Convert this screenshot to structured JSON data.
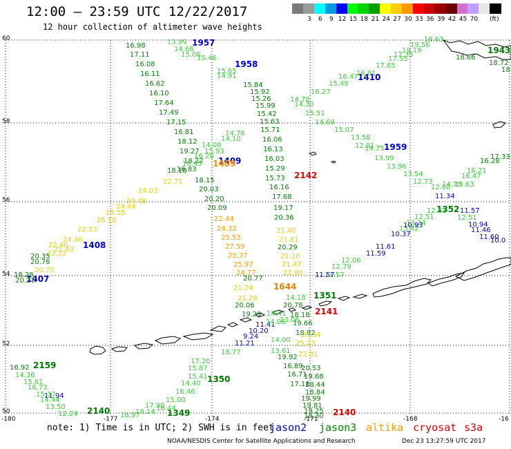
{
  "header": {
    "title": "12:00 – 23:59 UTC 12/22/2017",
    "subtitle": "12 hour collection of altimeter wave heights"
  },
  "legend": {
    "colors": [
      "#7a7a7a",
      "#9a9a9a",
      "#00ffff",
      "#009ae0",
      "#0000ff",
      "#00ff00",
      "#00d400",
      "#00a000",
      "#ffff00",
      "#ffcc00",
      "#ff9900",
      "#ff0000",
      "#c80000",
      "#960000",
      "#6e0000",
      "#d070d0",
      "#c0a0ff",
      "#e6e6e6",
      "#000000"
    ],
    "labels": [
      "3",
      "6",
      "9",
      "12",
      "15",
      "18",
      "21",
      "24",
      "27",
      "30",
      "33",
      "36",
      "39",
      "42",
      "45",
      "70"
    ],
    "unit": "(ft)"
  },
  "axes": {
    "lat_labels": [
      "60",
      "58",
      "56",
      "54",
      "52",
      "50"
    ],
    "lon_labels": [
      "-180",
      "-177",
      "-174",
      "-171",
      "-168",
      "-16"
    ]
  },
  "passes": [
    {
      "label": "1957",
      "color": "#0000c8"
    },
    {
      "label": "1958",
      "color": "#0000c8"
    },
    {
      "label": "1410",
      "color": "#0000c8"
    },
    {
      "label": "1959",
      "color": "#0000c8"
    },
    {
      "label": "1943",
      "color": "#007800"
    },
    {
      "label": "1409",
      "color": "#0000c8"
    },
    {
      "label": "1409",
      "color": "#ff8c00"
    },
    {
      "label": "2142",
      "color": "#e00000"
    },
    {
      "label": "1408",
      "color": "#0000c8"
    },
    {
      "label": "1407",
      "color": "#0000c8"
    },
    {
      "label": "1352",
      "color": "#007800"
    },
    {
      "label": "1644",
      "color": "#e08000"
    },
    {
      "label": "1351",
      "color": "#007800"
    },
    {
      "label": "2141",
      "color": "#e00000"
    },
    {
      "label": "2159",
      "color": "#007800"
    },
    {
      "label": "1350",
      "color": "#007800"
    },
    {
      "label": "2140",
      "color": "#007800"
    },
    {
      "label": "1349",
      "color": "#007800"
    },
    {
      "label": "2140",
      "color": "#e00000"
    }
  ],
  "track_labels": [
    {
      "v": "16.98",
      "c": "#008000"
    },
    {
      "v": "17.11",
      "c": "#008000"
    },
    {
      "v": "16.08",
      "c": "#008000"
    },
    {
      "v": "16.11",
      "c": "#008000"
    },
    {
      "v": "16.62",
      "c": "#008000"
    },
    {
      "v": "16.10",
      "c": "#008000"
    },
    {
      "v": "17.64",
      "c": "#008000"
    },
    {
      "v": "17.49",
      "c": "#008000"
    },
    {
      "v": "17.15",
      "c": "#008000"
    },
    {
      "v": "16.81",
      "c": "#008000"
    },
    {
      "v": "18.12",
      "c": "#008000"
    },
    {
      "v": "19.27",
      "c": "#008000"
    },
    {
      "v": "18.22",
      "c": "#008000"
    },
    {
      "v": "18.10",
      "c": "#008000"
    },
    {
      "v": "18.15",
      "c": "#008000"
    },
    {
      "v": "20.03",
      "c": "#008000"
    },
    {
      "v": "20.20",
      "c": "#008000"
    },
    {
      "v": "20.09",
      "c": "#008000"
    },
    {
      "v": "13.99",
      "c": "#30d030"
    },
    {
      "v": "14.66",
      "c": "#30d030"
    },
    {
      "v": "15.06",
      "c": "#30d030"
    },
    {
      "v": "15.46",
      "c": "#30d030"
    },
    {
      "v": "15.65",
      "c": "#30d030"
    },
    {
      "v": "14.91",
      "c": "#30d030"
    },
    {
      "v": "15.84",
      "c": "#008000"
    },
    {
      "v": "15.92",
      "c": "#008000"
    },
    {
      "v": "15.26",
      "c": "#008000"
    },
    {
      "v": "15.99",
      "c": "#008000"
    },
    {
      "v": "15.42",
      "c": "#008000"
    },
    {
      "v": "15.63",
      "c": "#008000"
    },
    {
      "v": "15.71",
      "c": "#008000"
    },
    {
      "v": "16.06",
      "c": "#008000"
    },
    {
      "v": "16.13",
      "c": "#008000"
    },
    {
      "v": "16.03",
      "c": "#008000"
    },
    {
      "v": "15.29",
      "c": "#008000"
    },
    {
      "v": "15.73",
      "c": "#008000"
    },
    {
      "v": "16.16",
      "c": "#008000"
    },
    {
      "v": "17.68",
      "c": "#008000"
    },
    {
      "v": "19.17",
      "c": "#008000"
    },
    {
      "v": "20.36",
      "c": "#008000"
    },
    {
      "v": "16.63",
      "c": "#30d030"
    },
    {
      "v": "19.19",
      "c": "#30d030"
    },
    {
      "v": "19.56",
      "c": "#30d030"
    },
    {
      "v": "17.35",
      "c": "#30d030"
    },
    {
      "v": "17.55",
      "c": "#30d030"
    },
    {
      "v": "17.65",
      "c": "#30d030"
    },
    {
      "v": "16.81",
      "c": "#30d030"
    },
    {
      "v": "16.47",
      "c": "#30d030"
    },
    {
      "v": "15.49",
      "c": "#30d030"
    },
    {
      "v": "16.27",
      "c": "#30d030"
    },
    {
      "v": "14.78",
      "c": "#30d030"
    },
    {
      "v": "14.30",
      "c": "#30d030"
    },
    {
      "v": "15.51",
      "c": "#30d030"
    },
    {
      "v": "14.69",
      "c": "#30d030"
    },
    {
      "v": "15.07",
      "c": "#30d030"
    },
    {
      "v": "13.58",
      "c": "#30d030"
    },
    {
      "v": "12.91",
      "c": "#30d030"
    },
    {
      "v": "14.75",
      "c": "#30d030"
    },
    {
      "v": "13.99",
      "c": "#30d030"
    },
    {
      "v": "13.96",
      "c": "#30d030"
    },
    {
      "v": "13.54",
      "c": "#30d030"
    },
    {
      "v": "12.73",
      "c": "#30d030"
    },
    {
      "v": "12.68",
      "c": "#30d030"
    },
    {
      "v": "14.70",
      "c": "#30d030"
    },
    {
      "v": "16.21",
      "c": "#30d030"
    },
    {
      "v": "16.47",
      "c": "#30d030"
    },
    {
      "v": "15.63",
      "c": "#30d030"
    },
    {
      "v": "16.28",
      "c": "#008000"
    },
    {
      "v": "17.33",
      "c": "#008000"
    },
    {
      "v": "18.66",
      "c": "#008000"
    },
    {
      "v": "18.72",
      "c": "#008000"
    },
    {
      "v": "18.9",
      "c": "#008000"
    },
    {
      "v": "14.76",
      "c": "#30d030"
    },
    {
      "v": "14.10",
      "c": "#30d030"
    },
    {
      "v": "14.08",
      "c": "#30d030"
    },
    {
      "v": "15.93",
      "c": "#30d030"
    },
    {
      "v": "16.28",
      "c": "#30d030"
    },
    {
      "v": "16.45",
      "c": "#30d030"
    },
    {
      "v": "16.83",
      "c": "#008000"
    },
    {
      "v": "22.71",
      "c": "#e6d000"
    },
    {
      "v": "24.03",
      "c": "#e6d000"
    },
    {
      "v": "24.48",
      "c": "#e6d000"
    },
    {
      "v": "24.44",
      "c": "#e6d000"
    },
    {
      "v": "25.55",
      "c": "#e6d000"
    },
    {
      "v": "26.50",
      "c": "#e6d000"
    },
    {
      "v": "22.53",
      "c": "#e6d000"
    },
    {
      "v": "24.40",
      "c": "#e6d000"
    },
    {
      "v": "22.46",
      "c": "#e6d000"
    },
    {
      "v": "21.40",
      "c": "#e6d000"
    },
    {
      "v": "22.22",
      "c": "#e6d000"
    },
    {
      "v": "20.70",
      "c": "#e6d000"
    },
    {
      "v": "20.76",
      "c": "#008000"
    },
    {
      "v": "20.35",
      "c": "#008000"
    },
    {
      "v": "18.28",
      "c": "#008000"
    },
    {
      "v": "20.21",
      "c": "#008000"
    },
    {
      "v": "22.44",
      "c": "#ff9900"
    },
    {
      "v": "24.32",
      "c": "#ff9900"
    },
    {
      "v": "25.53",
      "c": "#ff9900"
    },
    {
      "v": "27.59",
      "c": "#ff9900"
    },
    {
      "v": "25.37",
      "c": "#ff9900"
    },
    {
      "v": "25.97",
      "c": "#ff9900"
    },
    {
      "v": "24.77",
      "c": "#ff9900"
    },
    {
      "v": "21.40",
      "c": "#e6d000"
    },
    {
      "v": "21.61",
      "c": "#e6d000"
    },
    {
      "v": "21.10",
      "c": "#e6d000"
    },
    {
      "v": "21.47",
      "c": "#e6d000"
    },
    {
      "v": "22.80",
      "c": "#e6d000"
    },
    {
      "v": "21.74",
      "c": "#e6d000"
    },
    {
      "v": "21.29",
      "c": "#e6d000"
    },
    {
      "v": "20.29",
      "c": "#008000"
    },
    {
      "v": "20.77",
      "c": "#008000"
    },
    {
      "v": "20.06",
      "c": "#008000"
    },
    {
      "v": "19.29",
      "c": "#008000"
    },
    {
      "v": "20.78",
      "c": "#008000"
    },
    {
      "v": "18.18",
      "c": "#008000"
    },
    {
      "v": "19.66",
      "c": "#008000"
    },
    {
      "v": "18.82",
      "c": "#008000"
    },
    {
      "v": "19.92",
      "c": "#008000"
    },
    {
      "v": "16.89",
      "c": "#008000"
    },
    {
      "v": "16.71",
      "c": "#008000"
    },
    {
      "v": "17.18",
      "c": "#008000"
    },
    {
      "v": "12.51",
      "c": "#30d030"
    },
    {
      "v": "12.06",
      "c": "#30d030"
    },
    {
      "v": "11.57",
      "c": "#30d030"
    },
    {
      "v": "12.79",
      "c": "#30d030"
    },
    {
      "v": "12.82",
      "c": "#30d030"
    },
    {
      "v": "12.51",
      "c": "#30d030"
    },
    {
      "v": "13.24",
      "c": "#30d030"
    },
    {
      "v": "13.42",
      "c": "#30d030"
    },
    {
      "v": "11.34",
      "c": "#0000c8"
    },
    {
      "v": "11.57",
      "c": "#0000c8"
    },
    {
      "v": "10.94",
      "c": "#0000c8"
    },
    {
      "v": "11.46",
      "c": "#0000c8"
    },
    {
      "v": "11.60",
      "c": "#0000c8"
    },
    {
      "v": "10.0",
      "c": "#0000c8"
    },
    {
      "v": "10.93",
      "c": "#0000c8"
    },
    {
      "v": "10.37",
      "c": "#0000c8"
    },
    {
      "v": "11.61",
      "c": "#0000c8"
    },
    {
      "v": "11.59",
      "c": "#0000c8"
    },
    {
      "v": "11.57",
      "c": "#0000c8"
    },
    {
      "v": "11.41",
      "c": "#0000c8"
    },
    {
      "v": "10.20",
      "c": "#0000c8"
    },
    {
      "v": "9.24",
      "c": "#0000c8"
    },
    {
      "v": "11.21",
      "c": "#0000c8"
    },
    {
      "v": "11.94",
      "c": "#0000c8"
    },
    {
      "v": "14.06",
      "c": "#30d030"
    },
    {
      "v": "14.00",
      "c": "#30d030"
    },
    {
      "v": "13.61",
      "c": "#30d030"
    },
    {
      "v": "14.41",
      "c": "#30d030"
    },
    {
      "v": "13.06",
      "c": "#30d030"
    },
    {
      "v": "14.18",
      "c": "#30d030"
    },
    {
      "v": "16.92",
      "c": "#008000"
    },
    {
      "v": "14.36",
      "c": "#30d030"
    },
    {
      "v": "15.61",
      "c": "#30d030"
    },
    {
      "v": "16.73",
      "c": "#30d030"
    },
    {
      "v": "15.37",
      "c": "#30d030"
    },
    {
      "v": "14.44",
      "c": "#30d030"
    },
    {
      "v": "13.50",
      "c": "#30d030"
    },
    {
      "v": "12.24",
      "c": "#30d030"
    },
    {
      "v": "18.77",
      "c": "#30d030"
    },
    {
      "v": "17.20",
      "c": "#30d030"
    },
    {
      "v": "15.87",
      "c": "#30d030"
    },
    {
      "v": "15.41",
      "c": "#30d030"
    },
    {
      "v": "14.40",
      "c": "#30d030"
    },
    {
      "v": "16.46",
      "c": "#30d030"
    },
    {
      "v": "15.00",
      "c": "#30d030"
    },
    {
      "v": "16.44",
      "c": "#30d030"
    },
    {
      "v": "17.90",
      "c": "#30d030"
    },
    {
      "v": "18.14",
      "c": "#30d030"
    },
    {
      "v": "18.97",
      "c": "#30d030"
    },
    {
      "v": "23.34",
      "c": "#e6d000"
    },
    {
      "v": "25.23",
      "c": "#e6d000"
    },
    {
      "v": "22.31",
      "c": "#e6d000"
    },
    {
      "v": "20.53",
      "c": "#008000"
    },
    {
      "v": "19.68",
      "c": "#008000"
    },
    {
      "v": "18.44",
      "c": "#008000"
    },
    {
      "v": "18.84",
      "c": "#008000"
    },
    {
      "v": "19.99",
      "c": "#008000"
    },
    {
      "v": "19.81",
      "c": "#008000"
    },
    {
      "v": "19.25",
      "c": "#008000"
    },
    {
      "v": "18.30",
      "c": "#008000"
    }
  ],
  "footer": {
    "note": "note: 1) Time is in UTC; 2) SWH is in feet",
    "satellites": [
      {
        "name": "jason2",
        "color": "#0000c8"
      },
      {
        "name": "jason3",
        "color": "#008000"
      },
      {
        "name": "altika",
        "color": "#ff9900"
      },
      {
        "name": "cryosat",
        "color": "#e00000"
      },
      {
        "name": "s3a",
        "color": "#e00000"
      }
    ],
    "credit": "NOAA/NESDIS Center for Satellite Applications and Research",
    "timestamp": "Dec 23 13:27:59 UTC 2017"
  }
}
